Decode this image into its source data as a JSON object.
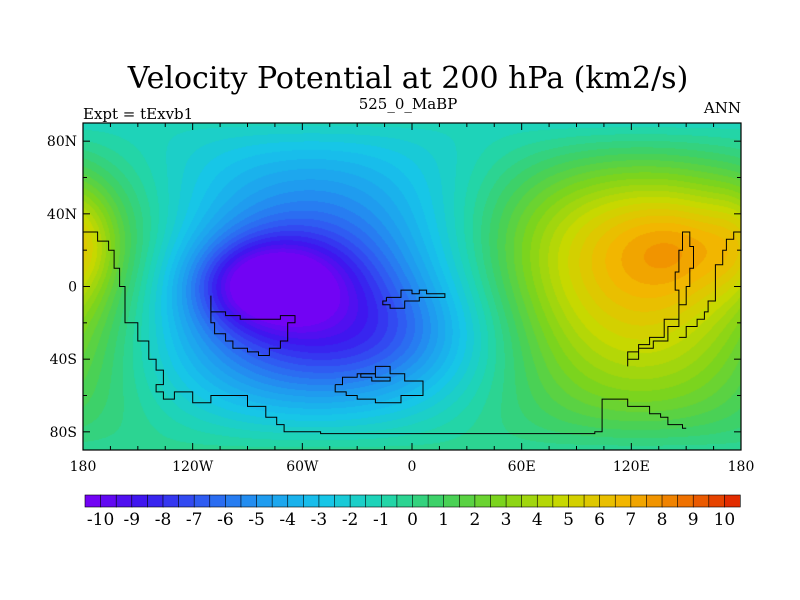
{
  "chart_data": {
    "type": "heatmap",
    "title": "Velocity Potential at 200 hPa (km2/s)",
    "left_label": "Expt = tExvb1",
    "center_label": "525_0_MaBP",
    "right_label": "ANN",
    "projection": "cylindrical-equidistant",
    "x_range": [
      -180,
      180
    ],
    "y_range": [
      -90,
      90
    ],
    "x_ticks": [
      {
        "value": -180,
        "label": "180"
      },
      {
        "value": -120,
        "label": "120W"
      },
      {
        "value": -60,
        "label": "60W"
      },
      {
        "value": 0,
        "label": "0"
      },
      {
        "value": 60,
        "label": "60E"
      },
      {
        "value": 120,
        "label": "120E"
      },
      {
        "value": 180,
        "label": "180"
      }
    ],
    "y_ticks": [
      {
        "value": 80,
        "label": "80N"
      },
      {
        "value": 40,
        "label": "40N"
      },
      {
        "value": 0,
        "label": "0"
      },
      {
        "value": -40,
        "label": "40S"
      },
      {
        "value": -80,
        "label": "80S"
      }
    ],
    "contour_interval": 0.5,
    "colorbar": {
      "min": -10.5,
      "max": 10.5,
      "bins": 42,
      "labels": [
        "-10",
        "-9",
        "-8",
        "-7",
        "-6",
        "-5",
        "-4",
        "-3",
        "-2",
        "-1",
        "0",
        "1",
        "2",
        "3",
        "4",
        "5",
        "6",
        "7",
        "8",
        "9",
        "10"
      ],
      "palette": [
        "#7a00f5",
        "#3a18ee",
        "#2f5ff2",
        "#1f9cef",
        "#16c5ea",
        "#20d6b0",
        "#40d060",
        "#7fd41a",
        "#c8d800",
        "#f2b800",
        "#f07800",
        "#e02000"
      ]
    },
    "field_features": [
      {
        "name": "western-pacific-maximum",
        "lon": 152,
        "lat": 22,
        "value": 8.6
      },
      {
        "name": "dateline-rim-maximum",
        "lon": -180,
        "lat": 25,
        "value": 7.6
      },
      {
        "name": "american-minimum",
        "lon": -82,
        "lat": 3,
        "value": -10.2
      },
      {
        "name": "atlantic-trough",
        "lon": -10,
        "lat": -25,
        "value": -5.0
      }
    ]
  }
}
